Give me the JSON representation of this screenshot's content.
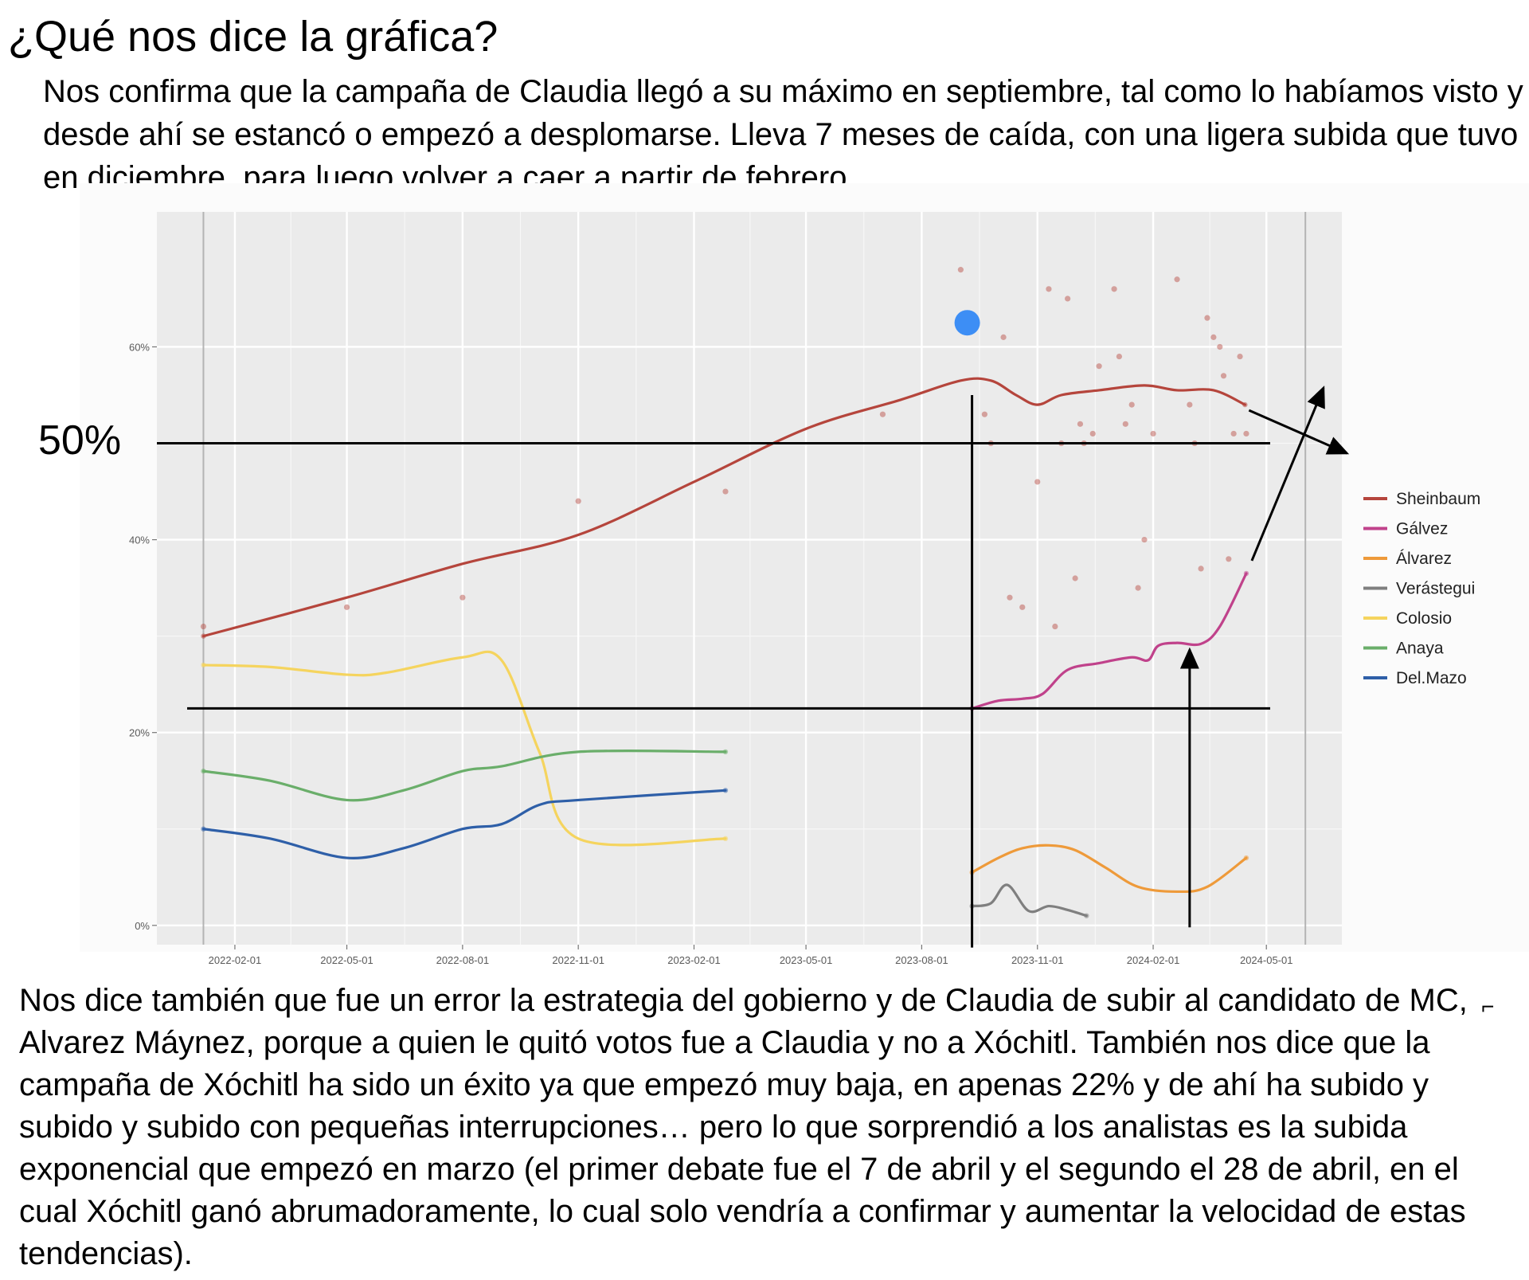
{
  "heading": "¿Qué nos dice la gráfica?",
  "intro_text": "Nos confirma que la campaña de Claudia llegó a su máximo en septiembre, tal como lo habíamos visto y desde ahí se estancó o empezó a desplomarse. Lleva 7 meses de caída, con una ligera subida que tuvo en diciembre, para luego volver a caer a partir de febrero",
  "body_text": "Nos dice también que fue un error la estrategia del gobierno y de Claudia de subir al candidato de MC, Alvarez Máynez, porque a quien le quitó votos fue a Claudia y no a Xóchitl. También nos dice que la campaña de Xóchitl ha sido un éxito ya que empezó muy baja, en apenas 22% y de ahí ha subido y subido y subido con pequeñas interrupciones… pero lo que sorprendió a los analistas es la subida exponencial que empezó en marzo (el primer debate fue el 7 de abril y el segundo el 28 de abril, en el cual Xóchitl ganó abrumadoramente, lo cual solo vendría a confirmar y aumentar la velocidad de estas tendencias).",
  "stray_mark": "⌐",
  "chart_data": {
    "type": "line",
    "title": "",
    "xlabel": "",
    "ylabel": "",
    "x_ticks": [
      "2022-02-01",
      "2022-05-01",
      "2022-08-01",
      "2022-11-01",
      "2023-02-01",
      "2023-05-01",
      "2023-08-01",
      "2023-11-01",
      "2024-02-01",
      "2024-05-01"
    ],
    "y_ticks": [
      0,
      20,
      40,
      60
    ],
    "y_tick_labels": [
      "0%",
      "20%",
      "40%",
      "60%"
    ],
    "ylim": [
      -2,
      74
    ],
    "xlim": [
      "2021-12-01",
      "2024-06-30"
    ],
    "grid": true,
    "legend_position": "right",
    "series": [
      {
        "name": "Sheinbaum",
        "color": "#b5453c",
        "points": [
          [
            "2022-01-07",
            30
          ],
          [
            "2022-05-01",
            34
          ],
          [
            "2022-08-01",
            37.5
          ],
          [
            "2022-11-01",
            40.5
          ],
          [
            "2023-02-01",
            46
          ],
          [
            "2023-05-01",
            51.5
          ],
          [
            "2023-07-15",
            54.5
          ],
          [
            "2023-09-01",
            56.5
          ],
          [
            "2023-09-25",
            56.5
          ],
          [
            "2023-10-15",
            55
          ],
          [
            "2023-11-01",
            54
          ],
          [
            "2023-11-20",
            55
          ],
          [
            "2023-12-20",
            55.5
          ],
          [
            "2024-01-25",
            56
          ],
          [
            "2024-02-20",
            55.5
          ],
          [
            "2024-03-20",
            55.5
          ],
          [
            "2024-04-14",
            54
          ]
        ]
      },
      {
        "name": "Gálvez",
        "color": "#c0428b",
        "points": [
          [
            "2023-09-10",
            22.5
          ],
          [
            "2023-10-01",
            23.3
          ],
          [
            "2023-10-20",
            23.5
          ],
          [
            "2023-11-05",
            24
          ],
          [
            "2023-11-25",
            26.5
          ],
          [
            "2023-12-20",
            27.2
          ],
          [
            "2024-01-15",
            27.8
          ],
          [
            "2024-01-28",
            27.5
          ],
          [
            "2024-02-05",
            29
          ],
          [
            "2024-02-20",
            29.3
          ],
          [
            "2024-03-10",
            29.2
          ],
          [
            "2024-03-25",
            31
          ],
          [
            "2024-04-15",
            36.5
          ]
        ]
      },
      {
        "name": "Álvarez",
        "color": "#ee9a3a",
        "points": [
          [
            "2023-09-10",
            5.5
          ],
          [
            "2023-10-01",
            7
          ],
          [
            "2023-10-20",
            8
          ],
          [
            "2023-11-10",
            8.3
          ],
          [
            "2023-12-01",
            7.8
          ],
          [
            "2023-12-25",
            6
          ],
          [
            "2024-01-20",
            4
          ],
          [
            "2024-02-20",
            3.5
          ],
          [
            "2024-03-15",
            4
          ],
          [
            "2024-04-15",
            7
          ]
        ]
      },
      {
        "name": "Verástegui",
        "color": "#7f7f7f",
        "points": [
          [
            "2023-09-10",
            2
          ],
          [
            "2023-09-25",
            2.3
          ],
          [
            "2023-10-08",
            4.2
          ],
          [
            "2023-10-25",
            1.5
          ],
          [
            "2023-11-10",
            2
          ],
          [
            "2023-11-25",
            1.6
          ],
          [
            "2023-12-10",
            1
          ]
        ]
      },
      {
        "name": "Colosio",
        "color": "#f5d45e",
        "points": [
          [
            "2022-01-07",
            27
          ],
          [
            "2022-03-01",
            26.8
          ],
          [
            "2022-05-01",
            26
          ],
          [
            "2022-06-01",
            26.2
          ],
          [
            "2022-08-01",
            27.8
          ],
          [
            "2022-09-01",
            27.5
          ],
          [
            "2022-10-01",
            18
          ],
          [
            "2022-11-01",
            9
          ],
          [
            "2023-02-26",
            9
          ]
        ]
      },
      {
        "name": "Anaya",
        "color": "#6aae6a",
        "points": [
          [
            "2022-01-07",
            16
          ],
          [
            "2022-03-01",
            15
          ],
          [
            "2022-05-01",
            13
          ],
          [
            "2022-06-15",
            14
          ],
          [
            "2022-08-01",
            16
          ],
          [
            "2022-09-01",
            16.5
          ],
          [
            "2022-11-01",
            18
          ],
          [
            "2023-02-26",
            18
          ]
        ]
      },
      {
        "name": "Del.Mazo",
        "color": "#2e5fa8",
        "points": [
          [
            "2022-01-07",
            10
          ],
          [
            "2022-03-01",
            9
          ],
          [
            "2022-05-01",
            7
          ],
          [
            "2022-06-15",
            8
          ],
          [
            "2022-08-01",
            10
          ],
          [
            "2022-09-01",
            10.5
          ],
          [
            "2022-10-01",
            12.5
          ],
          [
            "2022-11-01",
            13
          ],
          [
            "2023-02-26",
            14
          ]
        ]
      }
    ],
    "scatter_points": [
      {
        "series": "Sheinbaum",
        "points": [
          [
            "2022-01-07",
            31
          ],
          [
            "2022-05-01",
            33
          ],
          [
            "2022-08-01",
            34
          ],
          [
            "2022-11-01",
            44
          ],
          [
            "2023-02-26",
            45
          ],
          [
            "2023-07-01",
            53
          ],
          [
            "2023-09-01",
            68
          ],
          [
            "2023-09-20",
            53
          ],
          [
            "2023-09-25",
            50
          ],
          [
            "2023-10-05",
            61
          ],
          [
            "2023-10-10",
            34
          ],
          [
            "2023-10-20",
            33
          ],
          [
            "2023-11-01",
            46
          ],
          [
            "2023-11-10",
            66
          ],
          [
            "2023-11-15",
            31
          ],
          [
            "2023-11-20",
            50
          ],
          [
            "2023-11-25",
            65
          ],
          [
            "2023-12-01",
            36
          ],
          [
            "2023-12-05",
            52
          ],
          [
            "2023-12-08",
            50
          ],
          [
            "2023-12-15",
            51
          ],
          [
            "2023-12-20",
            58
          ],
          [
            "2024-01-01",
            66
          ],
          [
            "2024-01-05",
            59
          ],
          [
            "2024-01-10",
            52
          ],
          [
            "2024-01-15",
            54
          ],
          [
            "2024-01-20",
            35
          ],
          [
            "2024-01-25",
            40
          ],
          [
            "2024-02-01",
            51
          ],
          [
            "2024-02-20",
            67
          ],
          [
            "2024-03-01",
            54
          ],
          [
            "2024-03-05",
            50
          ],
          [
            "2024-03-10",
            37
          ],
          [
            "2024-03-15",
            63
          ],
          [
            "2024-03-20",
            61
          ],
          [
            "2024-03-25",
            60
          ],
          [
            "2024-03-28",
            57
          ],
          [
            "2024-04-01",
            38
          ],
          [
            "2024-04-05",
            51
          ],
          [
            "2024-04-10",
            59
          ],
          [
            "2024-04-15",
            51
          ]
        ]
      }
    ],
    "annotations": {
      "label_50": "50%",
      "hlines": [
        50,
        22.5
      ],
      "vlines": [
        "2023-09-10",
        "2024-03-01"
      ],
      "highlight_marker": {
        "x": "2023-09-10",
        "y": 62.5,
        "color": "#3d8ef5"
      }
    }
  }
}
